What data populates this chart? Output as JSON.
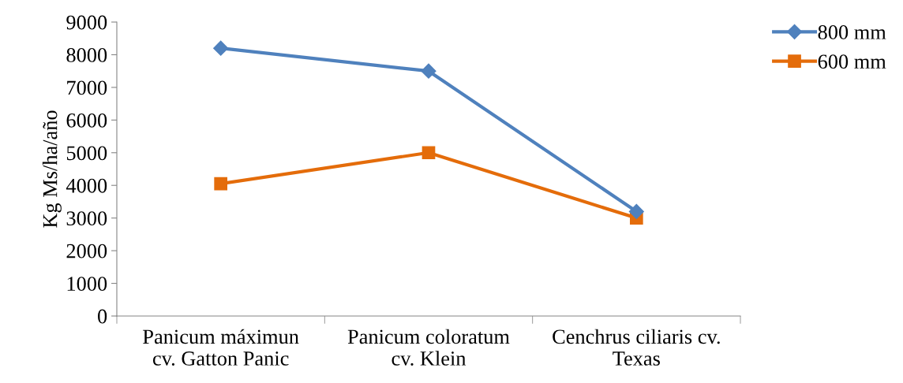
{
  "chart_data": {
    "type": "line",
    "ylabel": "Kg Ms/ha/año",
    "categories": [
      "Panicum máximun\ncv. Gatton Panic",
      "Panicum coloratum\ncv. Klein",
      "Cenchrus ciliaris cv.\nTexas"
    ],
    "series": [
      {
        "name": "800 mm",
        "color": "#4f81bd",
        "marker": "diamond",
        "values": [
          8200,
          7500,
          3200
        ]
      },
      {
        "name": "600 mm",
        "color": "#e46c0a",
        "marker": "square",
        "values": [
          4050,
          5000,
          3000
        ]
      }
    ],
    "ylim": [
      0,
      9000
    ],
    "yticks": [
      0,
      1000,
      2000,
      3000,
      4000,
      5000,
      6000,
      7000,
      8000,
      9000
    ],
    "grid": false,
    "legend": "top right",
    "line_style": "solid"
  }
}
